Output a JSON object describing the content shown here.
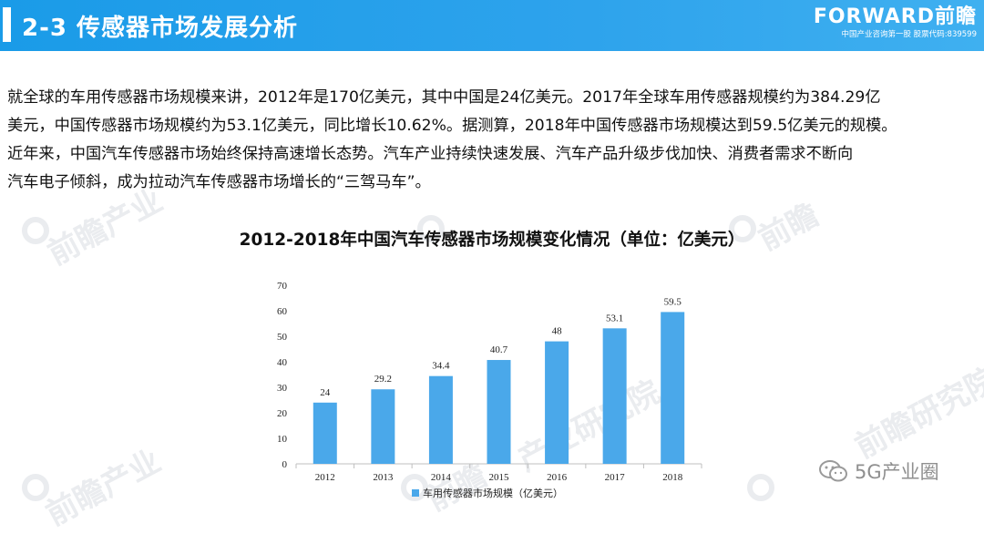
{
  "header": {
    "title": "2-3 传感器市场发展分析",
    "brand_logo": "FORWARD前瞻",
    "brand_tagline": "中国产业咨询第一股 股票代码:839599"
  },
  "paragraph": {
    "lines": [
      "就全球的车用传感器市场规模来讲，2012年是170亿美元，其中中国是24亿美元。2017年全球车用传感器规模约为384.29亿",
      "美元，中国传感器市场规模约为53.1亿美元，同比增长10.62%。据测算，2018年中国传感器市场规模达到59.5亿美元的规模。",
      "近年来，中国汽车传感器市场始终保持高速增长态势。汽车产业持续快速发展、汽车产品升级步伐加快、消费者需求不断向",
      "汽车电子倾斜，成为拉动汽车传感器市场增长的“三驾马车”。"
    ]
  },
  "watermark_text": "前瞻产业研究院",
  "source_stamp": {
    "icon": "wechat-icon",
    "text": "5G产业圈"
  },
  "chart_data": {
    "type": "bar",
    "title": "2012-2018年中国汽车传感器市场规模变化情况（单位：亿美元）",
    "categories": [
      "2012",
      "2013",
      "2014",
      "2015",
      "2016",
      "2017",
      "2018"
    ],
    "series": [
      {
        "name": "车用传感器市场规模（亿美元）",
        "values": [
          24,
          29.2,
          34.4,
          40.7,
          48,
          53.1,
          59.5
        ],
        "color": "#4aa8ea"
      }
    ],
    "value_labels": [
      "24",
      "29.2",
      "34.4",
      "40.7",
      "48",
      "53.1",
      "59.5"
    ],
    "ylim": [
      0,
      70
    ],
    "yticks": [
      "0",
      "10",
      "20",
      "30",
      "40",
      "50",
      "60",
      "70"
    ],
    "grid": false,
    "legend_position": "bottom"
  }
}
